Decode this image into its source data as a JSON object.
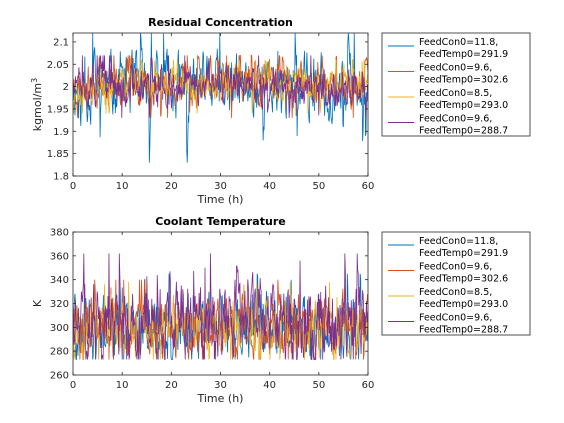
{
  "colors": {
    "series": [
      "#0072BD",
      "#D95319",
      "#EDB120",
      "#7E2F8E"
    ],
    "axis": "#262626",
    "background": "#ffffff"
  },
  "chart_data": [
    {
      "type": "line",
      "title": "Residual Concentration",
      "xlabel": "Time (h)",
      "ylabel": "kgmol/m",
      "ylabel_superscript": "3",
      "xlim": [
        0,
        60
      ],
      "ylim": [
        1.8,
        2.12
      ],
      "xticks": [
        0,
        10,
        20,
        30,
        40,
        50,
        60
      ],
      "yticks": [
        1.8,
        1.85,
        1.9,
        1.95,
        2,
        2.05,
        2.1
      ],
      "ytick_labels": [
        "1.8",
        "1.85",
        "1.9",
        "1.95",
        "2",
        "2.05",
        "2.1"
      ],
      "grid": false,
      "legend": "outside-right",
      "series": [
        {
          "name": [
            "FeedCon0=11.8,",
            "FeedTemp0=291.9"
          ],
          "center": 2.0,
          "amp": 0.048,
          "min": 1.83,
          "max": 2.12,
          "seed": 11
        },
        {
          "name": [
            "FeedCon0=9.6,",
            "FeedTemp0=302.6"
          ],
          "center": 2.005,
          "amp": 0.03,
          "min": 1.93,
          "max": 2.07,
          "seed": 23
        },
        {
          "name": [
            "FeedCon0=8.5,",
            "FeedTemp0=293.0"
          ],
          "center": 2.005,
          "amp": 0.025,
          "min": 1.94,
          "max": 2.06,
          "seed": 37
        },
        {
          "name": [
            "FeedCon0=9.6,",
            "FeedTemp0=288.7"
          ],
          "center": 2.0,
          "amp": 0.03,
          "min": 1.93,
          "max": 2.07,
          "seed": 51
        }
      ]
    },
    {
      "type": "line",
      "title": "Coolant Temperature",
      "xlabel": "Time (h)",
      "ylabel": "K",
      "xlim": [
        0,
        60
      ],
      "ylim": [
        260,
        380
      ],
      "xticks": [
        0,
        10,
        20,
        30,
        40,
        50,
        60
      ],
      "yticks": [
        260,
        280,
        300,
        320,
        340,
        360,
        380
      ],
      "ytick_labels": [
        "260",
        "280",
        "300",
        "320",
        "340",
        "360",
        "380"
      ],
      "grid": false,
      "legend": "outside-right",
      "series": [
        {
          "name": [
            "FeedCon0=11.8,",
            "FeedTemp0=291.9"
          ],
          "center": 300,
          "amp": 18,
          "min": 273,
          "max": 345,
          "seed": 101
        },
        {
          "name": [
            "FeedCon0=9.6,",
            "FeedTemp0=302.6"
          ],
          "center": 302,
          "amp": 16,
          "min": 273,
          "max": 340,
          "seed": 131
        },
        {
          "name": [
            "FeedCon0=8.5,",
            "FeedTemp0=293.0"
          ],
          "center": 301,
          "amp": 15,
          "min": 273,
          "max": 338,
          "seed": 157
        },
        {
          "name": [
            "FeedCon0=9.6,",
            "FeedTemp0=288.7"
          ],
          "center": 305,
          "amp": 22,
          "min": 273,
          "max": 362,
          "seed": 181
        }
      ]
    }
  ]
}
